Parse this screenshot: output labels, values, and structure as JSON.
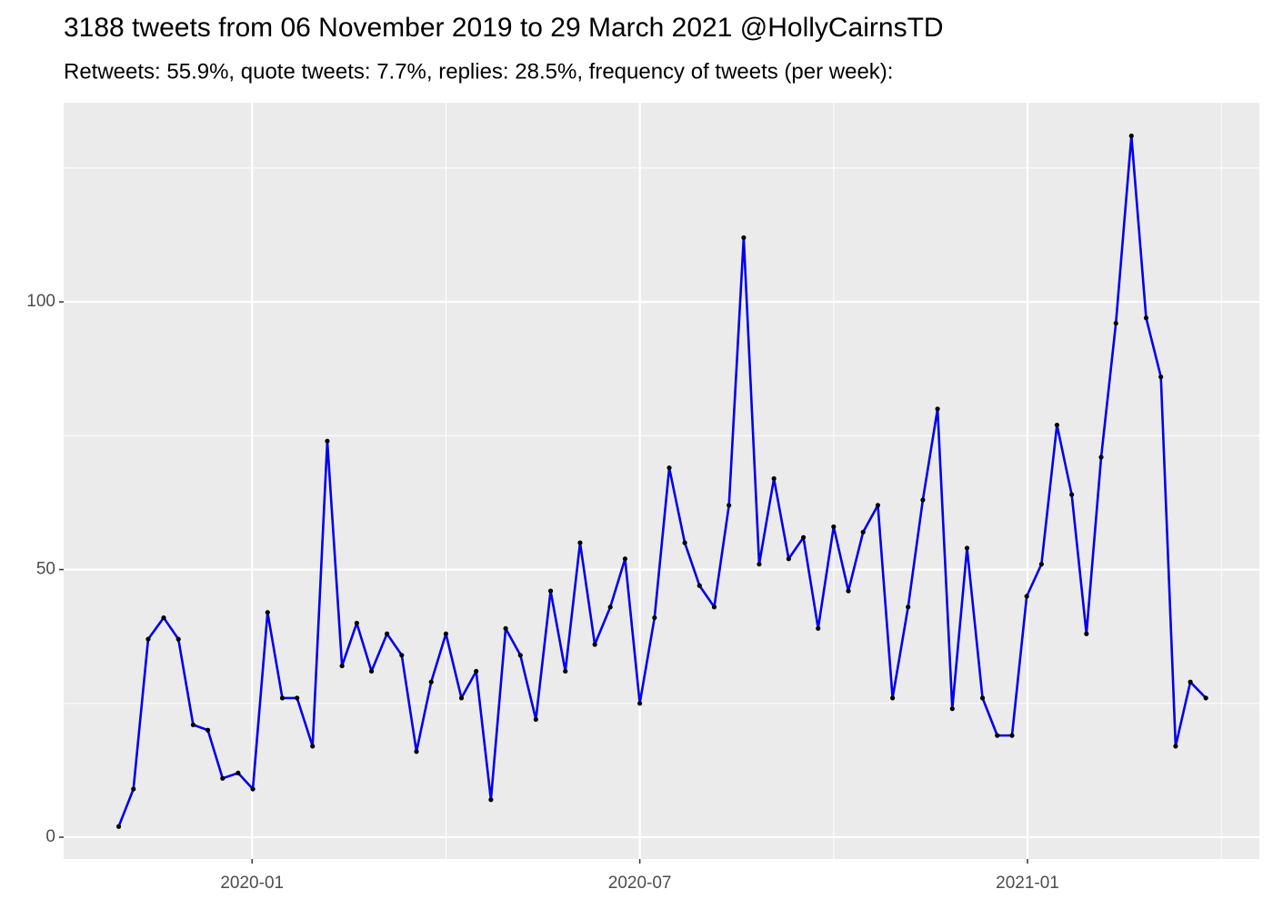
{
  "chart_data": {
    "type": "line",
    "title": "3188 tweets from 06 November 2019 to 29 March 2021 @HollyCairnsTD",
    "subtitle": "Retweets: 55.9%, quote tweets: 7.7%, replies: 28.5%, frequency of tweets (per week):",
    "x": [
      2019.828,
      2019.847,
      2019.866,
      2019.886,
      2019.905,
      2019.924,
      2019.943,
      2019.962,
      2019.982,
      2020.001,
      2020.02,
      2020.039,
      2020.058,
      2020.078,
      2020.097,
      2020.116,
      2020.135,
      2020.154,
      2020.174,
      2020.193,
      2020.212,
      2020.231,
      2020.25,
      2020.27,
      2020.289,
      2020.308,
      2020.327,
      2020.346,
      2020.366,
      2020.385,
      2020.404,
      2020.423,
      2020.442,
      2020.462,
      2020.481,
      2020.5,
      2020.519,
      2020.538,
      2020.558,
      2020.577,
      2020.596,
      2020.615,
      2020.634,
      2020.654,
      2020.673,
      2020.692,
      2020.711,
      2020.73,
      2020.75,
      2020.769,
      2020.788,
      2020.807,
      2020.826,
      2020.846,
      2020.865,
      2020.884,
      2020.903,
      2020.922,
      2020.942,
      2020.961,
      2020.98,
      2020.999,
      2021.018,
      2021.038,
      2021.057,
      2021.076,
      2021.095,
      2021.114,
      2021.134,
      2021.153,
      2021.172,
      2021.191,
      2021.21,
      2021.23
    ],
    "series": [
      {
        "color": "#0000ee",
        "marker_color": "#000000",
        "values": [
          2,
          9,
          37,
          41,
          37,
          21,
          20,
          11,
          12,
          9,
          42,
          26,
          26,
          17,
          74,
          32,
          40,
          31,
          38,
          34,
          16,
          29,
          38,
          26,
          31,
          7,
          39,
          34,
          22,
          46,
          31,
          55,
          36,
          43,
          52,
          25,
          41,
          69,
          55,
          47,
          43,
          62,
          112,
          51,
          67,
          52,
          56,
          39,
          58,
          46,
          57,
          62,
          26,
          43,
          63,
          80,
          24,
          54,
          26,
          19,
          19,
          45,
          51,
          77,
          64,
          38,
          71,
          96,
          131,
          97,
          86,
          17,
          29,
          26
        ]
      }
    ],
    "xlim": [
      2019.757,
      2021.299
    ],
    "xticks": [
      {
        "value": 2020.0,
        "label": "2020-01"
      },
      {
        "value": 2020.5,
        "label": "2020-07"
      },
      {
        "value": 2021.0,
        "label": "2021-01"
      }
    ],
    "ylim": [
      -4.07,
      137.2
    ],
    "yticks": [
      0,
      50,
      100
    ],
    "grid": true
  }
}
